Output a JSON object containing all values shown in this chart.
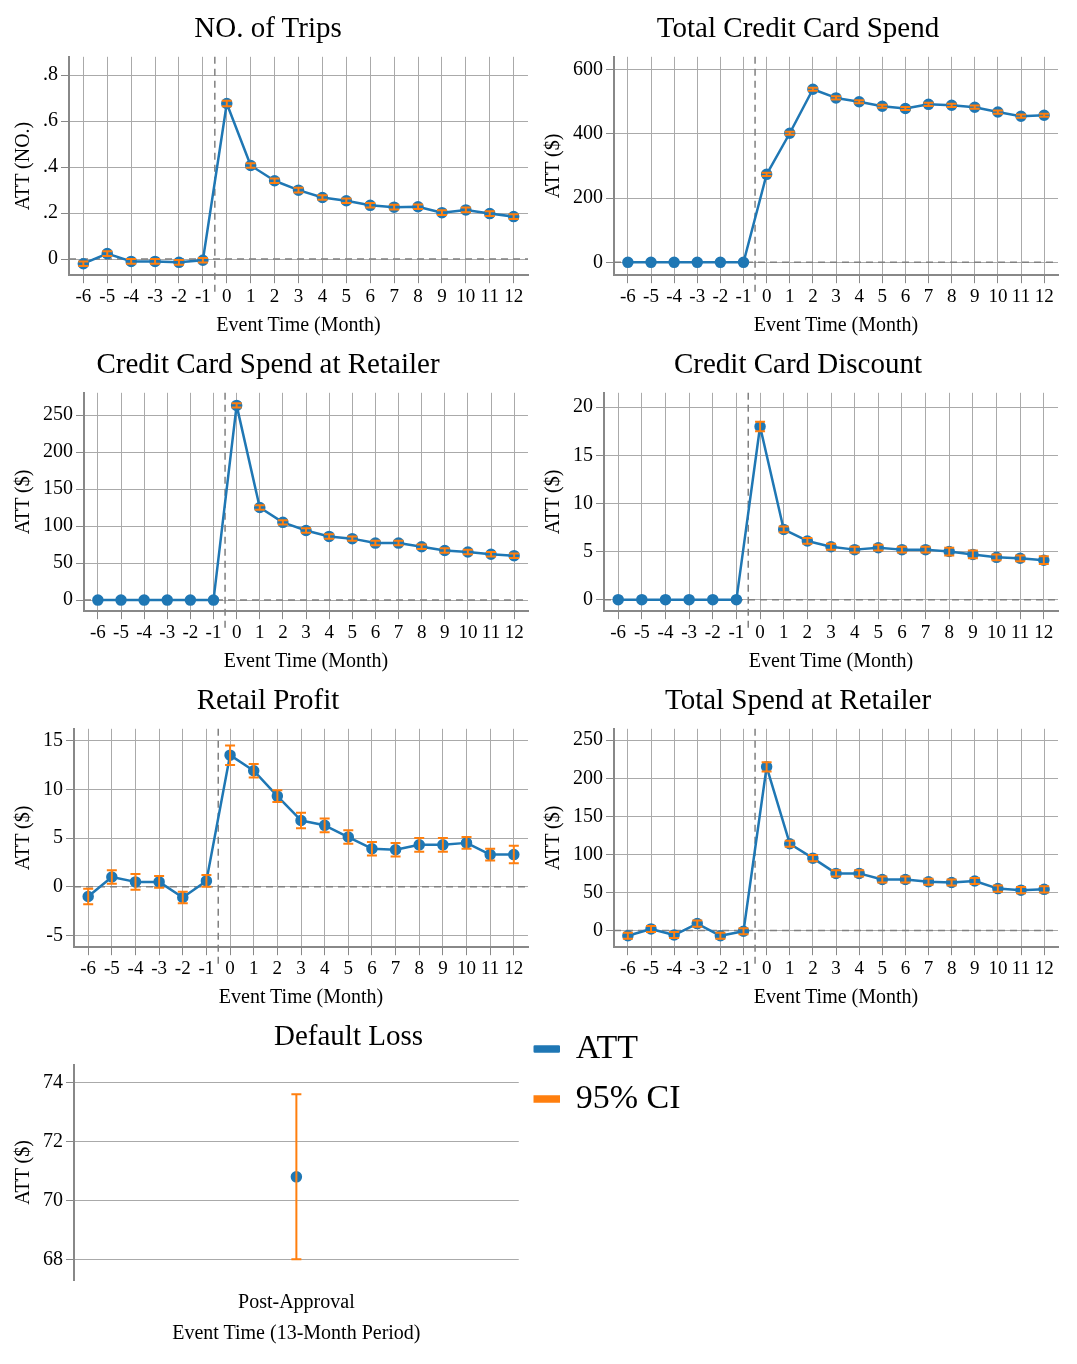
{
  "chart_data": [
    {
      "type": "line",
      "title": "NO. of Trips",
      "xlabel": "Event Time (Month)",
      "ylabel": "ATT (NO.)",
      "x": [
        -6,
        -5,
        -4,
        -3,
        -2,
        -1,
        0,
        1,
        2,
        3,
        4,
        5,
        6,
        7,
        8,
        9,
        10,
        11,
        12
      ],
      "xlim": [
        -6.6,
        12.6
      ],
      "xticks": [
        -6,
        -5,
        -4,
        -3,
        -2,
        -1,
        0,
        1,
        2,
        3,
        4,
        5,
        6,
        7,
        8,
        9,
        10,
        11,
        12
      ],
      "ylim": [
        -0.07,
        0.88
      ],
      "yticks": [
        0,
        {
          "value": 0.2,
          "label": ".2"
        },
        {
          "value": 0.4,
          "label": ".4"
        },
        {
          "value": 0.6,
          "label": ".6"
        },
        {
          "value": 0.8,
          "label": ".8"
        }
      ],
      "grid": true,
      "marker": "circle",
      "line_style": "solid",
      "ref_lines": [
        {
          "axis": "x",
          "value": -0.5,
          "line_style": "dashed",
          "color": "#808080"
        },
        {
          "axis": "y",
          "value": 0,
          "line_style": "dashed",
          "color": "#808080"
        }
      ],
      "series": [
        {
          "color": "#1f77b4",
          "values": [
            -0.02,
            0.024,
            -0.01,
            -0.01,
            -0.014,
            -0.005,
            0.677,
            0.407,
            0.341,
            0.3,
            0.268,
            0.254,
            0.234,
            0.226,
            0.228,
            0.202,
            0.214,
            0.198,
            0.185
          ],
          "errors": [
            0.01,
            0.01,
            0.01,
            0.01,
            0.01,
            0.01,
            0.012,
            0.01,
            0.01,
            0.01,
            0.01,
            0.01,
            0.01,
            0.01,
            0.01,
            0.01,
            0.01,
            0.01,
            0.01
          ]
        },
        {
          "type": "scatter",
          "marker": "none",
          "color": "#ff7f0e",
          "values": [
            null,
            null,
            null,
            null,
            null,
            null,
            null,
            null,
            null,
            null,
            null,
            null,
            null,
            null,
            null,
            null,
            null,
            null,
            null
          ]
        }
      ]
    },
    {
      "type": "line",
      "title": "Total Credit Card Spend",
      "xlabel": "Event Time (Month)",
      "ylabel": "ATT ($)",
      "x": [
        -6,
        -5,
        -4,
        -3,
        -2,
        -1,
        0,
        1,
        2,
        3,
        4,
        5,
        6,
        7,
        8,
        9,
        10,
        11,
        12
      ],
      "xlim": [
        -6.6,
        12.6
      ],
      "xticks": [
        -6,
        -5,
        -4,
        -3,
        -2,
        -1,
        0,
        1,
        2,
        3,
        4,
        5,
        6,
        7,
        8,
        9,
        10,
        11,
        12
      ],
      "ylim": [
        -40,
        640
      ],
      "yticks": [
        0,
        200,
        400,
        600
      ],
      "grid": true,
      "marker": "circle",
      "line_style": "solid",
      "ref_lines": [
        {
          "axis": "x",
          "value": -0.5,
          "line_style": "dashed",
          "color": "#808080"
        },
        {
          "axis": "y",
          "value": 0,
          "line_style": "dashed",
          "color": "#808080"
        }
      ],
      "series": [
        {
          "color": "#1f77b4",
          "values": [
            0,
            0,
            0,
            0,
            0,
            0,
            274,
            402,
            539,
            512,
            500,
            486,
            479,
            492,
            489,
            483,
            468,
            455,
            458
          ],
          "errors": [
            null,
            null,
            null,
            null,
            null,
            null,
            5,
            5,
            5,
            5,
            5,
            5,
            5,
            5,
            5,
            5,
            5,
            5,
            5
          ]
        },
        {
          "type": "scatter",
          "marker": "none",
          "color": "#ff7f0e",
          "values": [
            null,
            null,
            null,
            null,
            null,
            null,
            null,
            null,
            null,
            null,
            null,
            null,
            null,
            null,
            null,
            null,
            null,
            null,
            null
          ]
        }
      ]
    },
    {
      "type": "line",
      "title": "Credit Card Spend at Retailer",
      "xlabel": "Event Time (Month)",
      "ylabel": "ATT ($)",
      "x": [
        -6,
        -5,
        -4,
        -3,
        -2,
        -1,
        0,
        1,
        2,
        3,
        4,
        5,
        6,
        7,
        8,
        9,
        10,
        11,
        12
      ],
      "xlim": [
        -6.6,
        12.6
      ],
      "xticks": [
        -6,
        -5,
        -4,
        -3,
        -2,
        -1,
        0,
        1,
        2,
        3,
        4,
        5,
        6,
        7,
        8,
        9,
        10,
        11,
        12
      ],
      "ylim": [
        -15,
        280
      ],
      "yticks": [
        0,
        50,
        100,
        150,
        200,
        250
      ],
      "grid": true,
      "marker": "circle",
      "line_style": "solid",
      "ref_lines": [
        {
          "axis": "x",
          "value": -0.5,
          "line_style": "dashed",
          "color": "#808080"
        },
        {
          "axis": "y",
          "value": 0,
          "line_style": "dashed",
          "color": "#808080"
        }
      ],
      "series": [
        {
          "color": "#1f77b4",
          "values": [
            0,
            0,
            0,
            0,
            0,
            0,
            263,
            125,
            105,
            94,
            86,
            83,
            77,
            77,
            72,
            67,
            65,
            62,
            60
          ],
          "errors": [
            null,
            null,
            null,
            null,
            null,
            null,
            3,
            3,
            3,
            3,
            3,
            3,
            3,
            3,
            3,
            3,
            3,
            3,
            3
          ]
        },
        {
          "type": "scatter",
          "marker": "none",
          "color": "#ff7f0e",
          "values": [
            null,
            null,
            null,
            null,
            null,
            null,
            null,
            null,
            null,
            null,
            null,
            null,
            null,
            null,
            null,
            null,
            null,
            null,
            null
          ]
        }
      ]
    },
    {
      "type": "line",
      "title": "Credit Card Discount",
      "xlabel": "Event Time (Month)",
      "ylabel": "ATT ($)",
      "x": [
        -6,
        -5,
        -4,
        -3,
        -2,
        -1,
        0,
        1,
        2,
        3,
        4,
        5,
        6,
        7,
        8,
        9,
        10,
        11,
        12
      ],
      "xlim": [
        -6.6,
        12.6
      ],
      "xticks": [
        -6,
        -5,
        -4,
        -3,
        -2,
        -1,
        0,
        1,
        2,
        3,
        4,
        5,
        6,
        7,
        8,
        9,
        10,
        11,
        12
      ],
      "ylim": [
        -1.2,
        21.5
      ],
      "yticks": [
        0,
        5,
        10,
        15,
        20
      ],
      "grid": true,
      "marker": "circle",
      "line_style": "solid",
      "ref_lines": [
        {
          "axis": "x",
          "value": -0.5,
          "line_style": "dashed",
          "color": "#808080"
        },
        {
          "axis": "y",
          "value": 0,
          "line_style": "dashed",
          "color": "#808080"
        }
      ],
      "series": [
        {
          "color": "#1f77b4",
          "values": [
            0,
            0,
            0,
            0,
            0,
            0,
            18,
            7.3,
            6.1,
            5.5,
            5.2,
            5.4,
            5.2,
            5.2,
            5,
            4.7,
            4.4,
            4.3,
            4.1
          ],
          "errors": [
            null,
            null,
            null,
            null,
            null,
            null,
            0.5,
            0.3,
            0.3,
            0.3,
            0.3,
            0.3,
            0.3,
            0.3,
            0.4,
            0.4,
            0.3,
            0.3,
            0.4
          ]
        },
        {
          "type": "scatter",
          "marker": "none",
          "color": "#ff7f0e",
          "values": [
            null,
            null,
            null,
            null,
            null,
            null,
            null,
            null,
            null,
            null,
            null,
            null,
            null,
            null,
            null,
            null,
            null,
            null,
            null
          ]
        }
      ]
    },
    {
      "type": "line",
      "title": "Retail Profit",
      "xlabel": "Event Time (Month)",
      "ylabel": "ATT ($)",
      "x": [
        -6,
        -5,
        -4,
        -3,
        -2,
        -1,
        0,
        1,
        2,
        3,
        4,
        5,
        6,
        7,
        8,
        9,
        10,
        11,
        12
      ],
      "xlim": [
        -6.6,
        12.6
      ],
      "xticks": [
        -6,
        -5,
        -4,
        -3,
        -2,
        -1,
        0,
        1,
        2,
        3,
        4,
        5,
        6,
        7,
        8,
        9,
        10,
        11,
        12
      ],
      "ylim": [
        -6.2,
        16.2
      ],
      "yticks": [
        -5,
        0,
        5,
        10,
        15
      ],
      "grid": true,
      "marker": "circle",
      "line_style": "solid",
      "ref_lines": [
        {
          "axis": "x",
          "value": -0.5,
          "line_style": "dashed",
          "color": "#808080"
        },
        {
          "axis": "y",
          "value": 0,
          "line_style": "dashed",
          "color": "#808080"
        }
      ],
      "series": [
        {
          "color": "#1f77b4",
          "values": [
            -1,
            1,
            0.5,
            0.5,
            -1.1,
            0.6,
            13.5,
            11.9,
            9.3,
            6.8,
            6.3,
            5.1,
            3.9,
            3.8,
            4.3,
            4.3,
            4.5,
            3.3,
            3.3
          ],
          "errors": [
            0.8,
            0.7,
            0.8,
            0.6,
            0.6,
            0.6,
            1,
            0.7,
            0.6,
            0.8,
            0.7,
            0.7,
            0.7,
            0.7,
            0.7,
            0.7,
            0.6,
            0.6,
            0.9
          ]
        },
        {
          "type": "scatter",
          "marker": "none",
          "color": "#ff7f0e",
          "values": [
            null,
            null,
            null,
            null,
            null,
            null,
            null,
            null,
            null,
            null,
            null,
            null,
            null,
            null,
            null,
            null,
            null,
            null,
            null
          ]
        }
      ]
    },
    {
      "type": "line",
      "title": "Total Spend at Retailer",
      "xlabel": "Event Time (Month)",
      "ylabel": "ATT ($)",
      "x": [
        -6,
        -5,
        -4,
        -3,
        -2,
        -1,
        0,
        1,
        2,
        3,
        4,
        5,
        6,
        7,
        8,
        9,
        10,
        11,
        12
      ],
      "xlim": [
        -6.6,
        12.6
      ],
      "xticks": [
        -6,
        -5,
        -4,
        -3,
        -2,
        -1,
        0,
        1,
        2,
        3,
        4,
        5,
        6,
        7,
        8,
        9,
        10,
        11,
        12
      ],
      "ylim": [
        -22,
        265
      ],
      "yticks": [
        0,
        50,
        100,
        150,
        200,
        250
      ],
      "grid": true,
      "marker": "circle",
      "line_style": "solid",
      "ref_lines": [
        {
          "axis": "x",
          "value": -0.5,
          "line_style": "dashed",
          "color": "#808080"
        },
        {
          "axis": "y",
          "value": 0,
          "line_style": "dashed",
          "color": "#808080"
        }
      ],
      "series": [
        {
          "color": "#1f77b4",
          "values": [
            -7,
            2,
            -6,
            9,
            -7,
            -1,
            215,
            114,
            95,
            75,
            75,
            67,
            67,
            64,
            63,
            65,
            55,
            53,
            54
          ],
          "errors": [
            4,
            4,
            4,
            4,
            4,
            4,
            6,
            4,
            4,
            4,
            4,
            4,
            4,
            4,
            4,
            4,
            4,
            4,
            4
          ]
        },
        {
          "type": "scatter",
          "marker": "none",
          "color": "#ff7f0e",
          "values": [
            null,
            null,
            null,
            null,
            null,
            null,
            null,
            null,
            null,
            null,
            null,
            null,
            null,
            null,
            null,
            null,
            null,
            null,
            null
          ]
        }
      ]
    },
    {
      "type": "line",
      "title": "Default Loss",
      "xlabel": "Event Time (13-Month Period)",
      "ylabel": "ATT ($)",
      "categories": [
        "Post-Approval"
      ],
      "ylim": [
        67.3,
        74.6
      ],
      "yticks": [
        68,
        70,
        72,
        74
      ],
      "grid": "y",
      "marker": "circle",
      "legend": "right",
      "series": [
        {
          "name": "ATT",
          "color": "#1f77b4",
          "values": [
            70.8
          ],
          "errors": [
            [
              68,
              73.6
            ]
          ]
        },
        {
          "name": "95% CI",
          "type": "scatter",
          "marker": "none",
          "color": "#ff7f0e",
          "values": [
            null
          ]
        }
      ]
    }
  ]
}
